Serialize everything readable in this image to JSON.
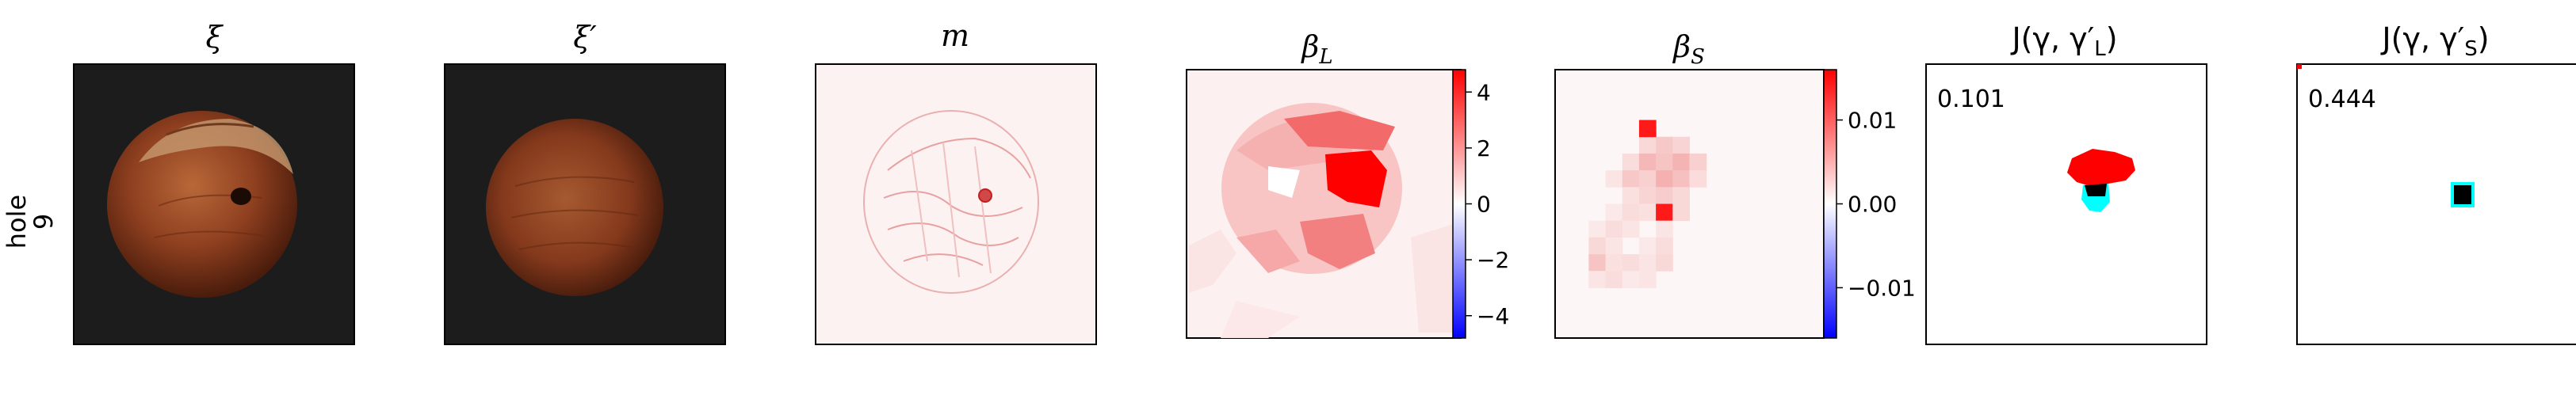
{
  "row_label": {
    "line1": "hole",
    "line2": "9"
  },
  "panels": {
    "xi": {
      "title": "ξ"
    },
    "xi_prime": {
      "title": "ξ′"
    },
    "m": {
      "title": "m"
    },
    "beta_l": {
      "title_main": "β",
      "title_sub": "L",
      "colorbar": {
        "min": -4.8,
        "max": 4.8,
        "ticks": [
          "4",
          "2",
          "0",
          "−2",
          "−4"
        ],
        "tick_values": [
          4,
          2,
          0,
          -2,
          -4
        ]
      }
    },
    "beta_s": {
      "title_main": "β",
      "title_sub": "S",
      "colorbar": {
        "min": -0.016,
        "max": 0.016,
        "ticks": [
          "0.01",
          "0.00",
          "−0.01"
        ],
        "tick_values": [
          0.01,
          0.0,
          -0.01
        ]
      }
    },
    "j_l": {
      "title": "J(γ, γ′",
      "title_sub": "L",
      "title_end": ")",
      "score": "0.101"
    },
    "j_s": {
      "title": "J(γ, γ′",
      "title_sub": "S",
      "title_end": ")",
      "score": "0.444"
    }
  },
  "colors": {
    "nut_dark": "#5a2410",
    "nut_mid": "#8e3f1f",
    "nut_light": "#b8673c",
    "photo_bg": "#1a1a1a",
    "pred": "#ff0000",
    "gt": "#00ffff",
    "overlap": "#000000",
    "cmap_neg": "#0000ff",
    "cmap_zero": "#ffffff",
    "cmap_pos": "#ff0000"
  }
}
